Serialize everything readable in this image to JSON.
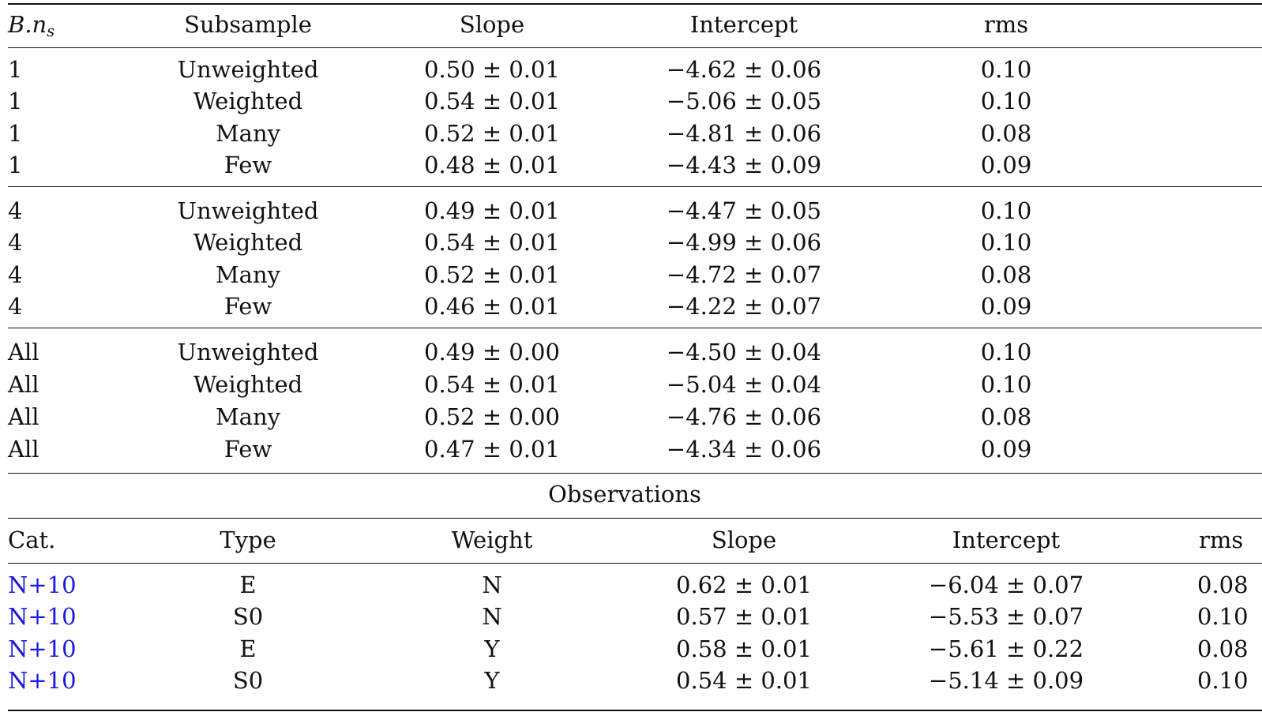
{
  "table1": {
    "header": {
      "bns_label": "B.n",
      "bns_subscript": "s",
      "subsample": "Subsample",
      "slope": "Slope",
      "intercept": "Intercept",
      "rms": "rms"
    },
    "groups": [
      {
        "rows": [
          {
            "bns": "1",
            "subsample": "Unweighted",
            "slope": "0.50 ± 0.01",
            "intercept": "−4.62 ± 0.06",
            "rms": "0.10"
          },
          {
            "bns": "1",
            "subsample": "Weighted",
            "slope": "0.54 ± 0.01",
            "intercept": "−5.06 ± 0.05",
            "rms": "0.10"
          },
          {
            "bns": "1",
            "subsample": "Many",
            "slope": "0.52 ± 0.01",
            "intercept": "−4.81 ± 0.06",
            "rms": "0.08"
          },
          {
            "bns": "1",
            "subsample": "Few",
            "slope": "0.48 ± 0.01",
            "intercept": "−4.43 ± 0.09",
            "rms": "0.09"
          }
        ]
      },
      {
        "rows": [
          {
            "bns": "4",
            "subsample": "Unweighted",
            "slope": "0.49 ± 0.01",
            "intercept": "−4.47 ± 0.05",
            "rms": "0.10"
          },
          {
            "bns": "4",
            "subsample": "Weighted",
            "slope": "0.54 ± 0.01",
            "intercept": "−4.99 ± 0.06",
            "rms": "0.10"
          },
          {
            "bns": "4",
            "subsample": "Many",
            "slope": "0.52 ± 0.01",
            "intercept": "−4.72 ± 0.07",
            "rms": "0.08"
          },
          {
            "bns": "4",
            "subsample": "Few",
            "slope": "0.46 ± 0.01",
            "intercept": "−4.22 ± 0.07",
            "rms": "0.09"
          }
        ]
      },
      {
        "rows": [
          {
            "bns": "All",
            "subsample": "Unweighted",
            "slope": "0.49 ± 0.00",
            "intercept": "−4.50 ± 0.04",
            "rms": "0.10"
          },
          {
            "bns": "All",
            "subsample": "Weighted",
            "slope": "0.54 ± 0.01",
            "intercept": "−5.04 ± 0.04",
            "rms": "0.10"
          },
          {
            "bns": "All",
            "subsample": "Many",
            "slope": "0.52 ± 0.00",
            "intercept": "−4.76 ± 0.06",
            "rms": "0.08"
          },
          {
            "bns": "All",
            "subsample": "Few",
            "slope": "0.47 ± 0.01",
            "intercept": "−4.34 ± 0.06",
            "rms": "0.09"
          }
        ]
      }
    ]
  },
  "observations": {
    "title": "Observations",
    "header": {
      "cat": "Cat.",
      "type": "Type",
      "weight": "Weight",
      "slope": "Slope",
      "intercept": "Intercept",
      "rms": "rms"
    },
    "rows": [
      {
        "cat": "N+10",
        "type": "E",
        "weight": "N",
        "slope": "0.62 ± 0.01",
        "intercept": "−6.04 ± 0.07",
        "rms": "0.08"
      },
      {
        "cat": "N+10",
        "type": "S0",
        "weight": "N",
        "slope": "0.57 ± 0.01",
        "intercept": "−5.53 ± 0.07",
        "rms": "0.10"
      },
      {
        "cat": "N+10",
        "type": "E",
        "weight": "Y",
        "slope": "0.58 ± 0.01",
        "intercept": "−5.61 ± 0.22",
        "rms": "0.08"
      },
      {
        "cat": "N+10",
        "type": "S0",
        "weight": "Y",
        "slope": "0.54 ± 0.01",
        "intercept": "−5.14 ± 0.09",
        "rms": "0.10"
      }
    ]
  },
  "colors": {
    "text": "#111111",
    "link": "#1a1adf",
    "rule": "#111111",
    "background": "#ffffff"
  }
}
